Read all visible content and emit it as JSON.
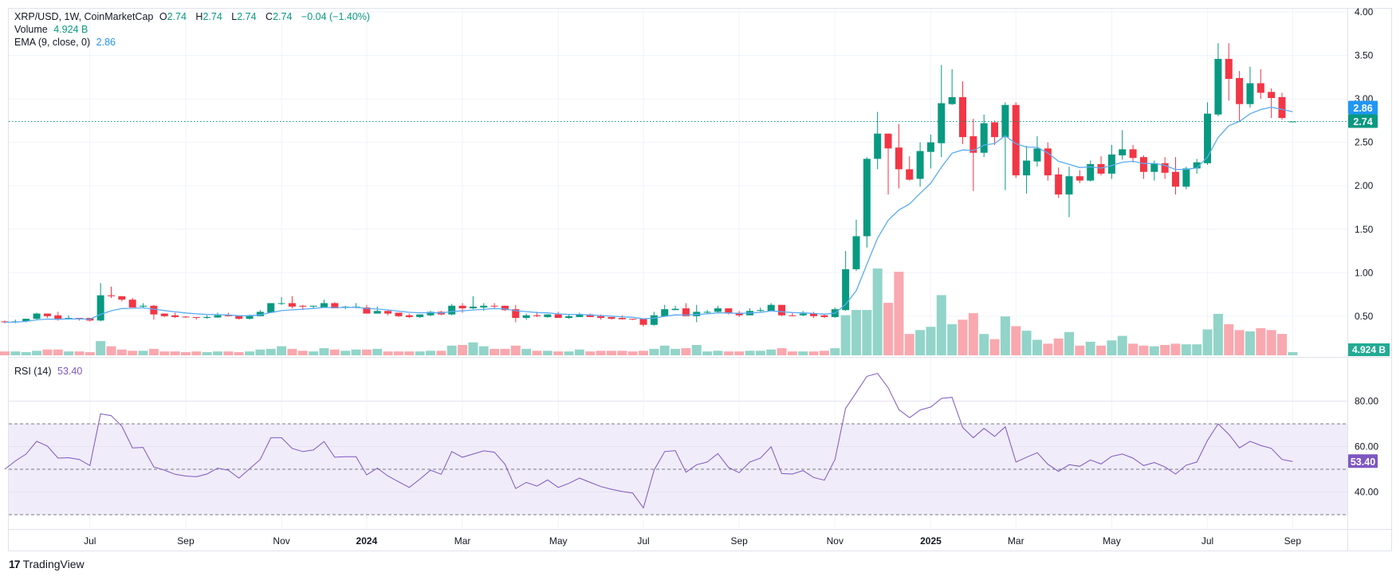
{
  "header": {
    "symbol": "XRP/USD, 1W, CoinMarketCap",
    "o_label": "O",
    "o": "2.74",
    "h_label": "H",
    "h": "2.74",
    "l_label": "L",
    "l": "2.74",
    "c_label": "C",
    "c": "2.74",
    "change": "−0.04 (−1.40%)",
    "volume_label": "Volume",
    "volume_value": "4.924 B",
    "ema_label": "EMA (9, close, 0)",
    "ema_value": "2.86",
    "rsi_label": "RSI (14)",
    "rsi_value": "53.40"
  },
  "badges": {
    "ema": "2.86",
    "last_price": "2.74",
    "volume": "4.924 B",
    "rsi": "53.40"
  },
  "brand": "TradingView",
  "colors": {
    "up": "#089981",
    "down": "#f23645",
    "vol_up": "#92d4c9",
    "vol_down": "#f9a8af",
    "ema": "#2196f3",
    "rsi": "#7e57c2",
    "rsi_band": "#f0ecf9",
    "volume_badge": "#22ab94"
  },
  "chart_data": [
    {
      "type": "candlestick",
      "interval": "1W",
      "price_axis": {
        "ticks": [
          "0.50",
          "1.00",
          "1.50",
          "2.00",
          "2.50",
          "3.00",
          "3.50",
          "4.00"
        ],
        "ylim": [
          0,
          4
        ]
      },
      "time_axis": [
        {
          "label": "Jul",
          "date": "2023-07-03"
        },
        {
          "label": "Sep",
          "date": "2023-09-04"
        },
        {
          "label": "Nov",
          "date": "2023-11-06"
        },
        {
          "label": "2024",
          "date": "2024-01-01"
        },
        {
          "label": "Mar",
          "date": "2024-03-04"
        },
        {
          "label": "May",
          "date": "2024-05-06"
        },
        {
          "label": "Jul",
          "date": "2024-07-01"
        },
        {
          "label": "Sep",
          "date": "2024-09-02"
        },
        {
          "label": "Nov",
          "date": "2024-11-04"
        },
        {
          "label": "2025",
          "date": "2025-01-06"
        },
        {
          "label": "Mar",
          "date": "2025-03-03"
        },
        {
          "label": "May",
          "date": "2025-05-05"
        },
        {
          "label": "Jul",
          "date": "2025-07-07"
        },
        {
          "label": "Sep",
          "date": "2025-09-01"
        }
      ],
      "columns": [
        "week",
        "open",
        "high",
        "low",
        "close",
        "volume_B"
      ],
      "candles": [
        [
          "2023-05-08",
          0.44,
          0.45,
          0.42,
          0.43,
          6
        ],
        [
          "2023-05-15",
          0.43,
          0.46,
          0.42,
          0.44,
          6
        ],
        [
          "2023-05-22",
          0.44,
          0.47,
          0.43,
          0.47,
          5
        ],
        [
          "2023-05-29",
          0.47,
          0.54,
          0.46,
          0.53,
          7
        ],
        [
          "2023-06-05",
          0.53,
          0.53,
          0.48,
          0.5,
          9
        ],
        [
          "2023-06-12",
          0.51,
          0.55,
          0.45,
          0.46,
          9
        ],
        [
          "2023-06-19",
          0.47,
          0.51,
          0.46,
          0.48,
          6
        ],
        [
          "2023-06-26",
          0.48,
          0.48,
          0.45,
          0.475,
          6
        ],
        [
          "2023-07-03",
          0.48,
          0.48,
          0.44,
          0.45,
          5
        ],
        [
          "2023-07-10",
          0.45,
          0.88,
          0.44,
          0.74,
          22
        ],
        [
          "2023-07-17",
          0.74,
          0.84,
          0.71,
          0.73,
          14
        ],
        [
          "2023-07-24",
          0.73,
          0.73,
          0.67,
          0.69,
          9
        ],
        [
          "2023-07-31",
          0.69,
          0.71,
          0.6,
          0.6,
          7
        ],
        [
          "2023-08-07",
          0.61,
          0.65,
          0.59,
          0.62,
          7
        ],
        [
          "2023-08-14",
          0.62,
          0.63,
          0.46,
          0.52,
          10
        ],
        [
          "2023-08-21",
          0.53,
          0.53,
          0.49,
          0.5,
          6
        ],
        [
          "2023-08-28",
          0.51,
          0.54,
          0.48,
          0.49,
          6
        ],
        [
          "2023-09-04",
          0.495,
          0.5,
          0.48,
          0.487,
          5
        ],
        [
          "2023-09-11",
          0.49,
          0.49,
          0.46,
          0.485,
          6
        ],
        [
          "2023-09-18",
          0.48,
          0.51,
          0.47,
          0.49,
          5
        ],
        [
          "2023-09-25",
          0.485,
          0.54,
          0.48,
          0.51,
          6
        ],
        [
          "2023-10-02",
          0.51,
          0.54,
          0.5,
          0.5,
          6
        ],
        [
          "2023-10-09",
          0.51,
          0.51,
          0.46,
          0.47,
          5
        ],
        [
          "2023-10-16",
          0.47,
          0.52,
          0.46,
          0.51,
          6
        ],
        [
          "2023-10-23",
          0.5,
          0.57,
          0.5,
          0.55,
          9
        ],
        [
          "2023-10-30",
          0.54,
          0.65,
          0.54,
          0.65,
          10
        ],
        [
          "2023-11-06",
          0.645,
          0.72,
          0.63,
          0.65,
          14
        ],
        [
          "2023-11-13",
          0.65,
          0.73,
          0.59,
          0.61,
          10
        ],
        [
          "2023-11-20",
          0.62,
          0.63,
          0.57,
          0.61,
          7
        ],
        [
          "2023-11-27",
          0.61,
          0.62,
          0.59,
          0.62,
          6
        ],
        [
          "2023-12-04",
          0.6,
          0.69,
          0.6,
          0.65,
          11
        ],
        [
          "2023-12-11",
          0.65,
          0.66,
          0.59,
          0.59,
          9
        ],
        [
          "2023-12-18",
          0.6,
          0.62,
          0.58,
          0.61,
          7
        ],
        [
          "2023-12-25",
          0.6,
          0.65,
          0.59,
          0.61,
          9
        ],
        [
          "2024-01-01",
          0.6,
          0.63,
          0.53,
          0.53,
          9
        ],
        [
          "2024-01-08",
          0.53,
          0.61,
          0.53,
          0.56,
          10
        ],
        [
          "2024-01-15",
          0.56,
          0.57,
          0.51,
          0.53,
          6
        ],
        [
          "2024-01-22",
          0.54,
          0.54,
          0.49,
          0.5,
          6
        ],
        [
          "2024-01-29",
          0.51,
          0.53,
          0.48,
          0.49,
          6
        ],
        [
          "2024-02-05",
          0.49,
          0.52,
          0.48,
          0.52,
          6
        ],
        [
          "2024-02-12",
          0.51,
          0.56,
          0.5,
          0.55,
          7
        ],
        [
          "2024-02-19",
          0.55,
          0.56,
          0.51,
          0.52,
          7
        ],
        [
          "2024-02-26",
          0.52,
          0.64,
          0.51,
          0.62,
          15
        ],
        [
          "2024-03-04",
          0.62,
          0.65,
          0.54,
          0.59,
          16
        ],
        [
          "2024-03-11",
          0.59,
          0.73,
          0.58,
          0.61,
          20
        ],
        [
          "2024-03-18",
          0.6,
          0.65,
          0.56,
          0.62,
          14
        ],
        [
          "2024-03-25",
          0.62,
          0.65,
          0.59,
          0.615,
          10
        ],
        [
          "2024-04-01",
          0.62,
          0.62,
          0.56,
          0.57,
          10
        ],
        [
          "2024-04-08",
          0.58,
          0.63,
          0.43,
          0.48,
          15
        ],
        [
          "2024-04-15",
          0.48,
          0.53,
          0.46,
          0.51,
          10
        ],
        [
          "2024-04-22",
          0.51,
          0.55,
          0.49,
          0.5,
          7
        ],
        [
          "2024-04-29",
          0.49,
          0.52,
          0.48,
          0.52,
          7
        ],
        [
          "2024-05-06",
          0.52,
          0.55,
          0.48,
          0.48,
          6
        ],
        [
          "2024-05-13",
          0.48,
          0.52,
          0.47,
          0.5,
          6
        ],
        [
          "2024-05-20",
          0.49,
          0.54,
          0.49,
          0.52,
          9
        ],
        [
          "2024-05-27",
          0.52,
          0.53,
          0.49,
          0.49,
          6
        ],
        [
          "2024-06-03",
          0.5,
          0.52,
          0.46,
          0.48,
          7
        ],
        [
          "2024-06-10",
          0.49,
          0.49,
          0.46,
          0.47,
          7
        ],
        [
          "2024-06-17",
          0.48,
          0.51,
          0.46,
          0.465,
          7
        ],
        [
          "2024-06-24",
          0.47,
          0.47,
          0.455,
          0.462,
          6
        ],
        [
          "2024-07-01",
          0.47,
          0.47,
          0.38,
          0.4,
          7
        ],
        [
          "2024-07-08",
          0.4,
          0.55,
          0.39,
          0.51,
          10
        ],
        [
          "2024-07-15",
          0.5,
          0.63,
          0.5,
          0.58,
          15
        ],
        [
          "2024-07-22",
          0.57,
          0.62,
          0.57,
          0.585,
          10
        ],
        [
          "2024-07-29",
          0.59,
          0.65,
          0.5,
          0.5,
          11
        ],
        [
          "2024-08-05",
          0.5,
          0.63,
          0.43,
          0.55,
          16
        ],
        [
          "2024-08-12",
          0.54,
          0.57,
          0.53,
          0.55,
          6
        ],
        [
          "2024-08-19",
          0.55,
          0.62,
          0.54,
          0.59,
          7
        ],
        [
          "2024-08-26",
          0.59,
          0.59,
          0.52,
          0.53,
          6
        ],
        [
          "2024-09-02",
          0.54,
          0.56,
          0.49,
          0.51,
          6
        ],
        [
          "2024-09-09",
          0.51,
          0.59,
          0.51,
          0.56,
          7
        ],
        [
          "2024-09-16",
          0.56,
          0.6,
          0.55,
          0.57,
          7
        ],
        [
          "2024-09-23",
          0.56,
          0.65,
          0.56,
          0.63,
          9
        ],
        [
          "2024-09-30",
          0.63,
          0.63,
          0.5,
          0.51,
          11
        ],
        [
          "2024-10-07",
          0.51,
          0.54,
          0.5,
          0.505,
          6
        ],
        [
          "2024-10-14",
          0.51,
          0.56,
          0.5,
          0.53,
          6
        ],
        [
          "2024-10-21",
          0.53,
          0.55,
          0.48,
          0.5,
          6
        ],
        [
          "2024-10-28",
          0.51,
          0.52,
          0.48,
          0.49,
          7
        ],
        [
          "2024-11-04",
          0.49,
          0.6,
          0.48,
          0.58,
          11
        ],
        [
          "2024-11-11",
          0.57,
          1.25,
          0.56,
          1.04,
          62
        ],
        [
          "2024-11-18",
          1.04,
          1.61,
          1.02,
          1.42,
          70
        ],
        [
          "2024-11-25",
          1.42,
          2.33,
          1.29,
          2.31,
          70
        ],
        [
          "2024-12-02",
          2.31,
          2.85,
          2.19,
          2.6,
          134
        ],
        [
          "2024-12-09",
          2.6,
          2.6,
          1.9,
          2.43,
          81
        ],
        [
          "2024-12-16",
          2.44,
          2.71,
          1.97,
          2.19,
          129
        ],
        [
          "2024-12-23",
          2.19,
          2.34,
          2.06,
          2.07,
          33
        ],
        [
          "2024-12-30",
          2.08,
          2.5,
          1.99,
          2.4,
          39
        ],
        [
          "2025-01-06",
          2.39,
          2.59,
          2.2,
          2.5,
          44
        ],
        [
          "2025-01-13",
          2.49,
          3.39,
          2.33,
          2.95,
          93
        ],
        [
          "2025-01-20",
          2.94,
          3.34,
          2.93,
          3.02,
          48
        ],
        [
          "2025-01-27",
          3.02,
          3.2,
          2.48,
          2.56,
          55
        ],
        [
          "2025-02-03",
          2.57,
          2.77,
          1.94,
          2.38,
          65
        ],
        [
          "2025-02-10",
          2.38,
          2.82,
          2.33,
          2.72,
          33
        ],
        [
          "2025-02-17",
          2.73,
          2.75,
          2.47,
          2.56,
          25
        ],
        [
          "2025-02-24",
          2.56,
          2.96,
          1.95,
          2.93,
          60
        ],
        [
          "2025-03-03",
          2.93,
          2.96,
          2.09,
          2.12,
          45
        ],
        [
          "2025-03-10",
          2.12,
          2.46,
          1.91,
          2.29,
          38
        ],
        [
          "2025-03-17",
          2.28,
          2.57,
          2.22,
          2.43,
          24
        ],
        [
          "2025-03-24",
          2.43,
          2.5,
          2.06,
          2.12,
          18
        ],
        [
          "2025-03-31",
          2.13,
          2.21,
          1.86,
          1.9,
          26
        ],
        [
          "2025-04-07",
          1.9,
          2.22,
          1.64,
          2.11,
          36
        ],
        [
          "2025-04-14",
          2.11,
          2.18,
          2.03,
          2.06,
          15
        ],
        [
          "2025-04-21",
          2.06,
          2.29,
          2.05,
          2.25,
          21
        ],
        [
          "2025-04-28",
          2.25,
          2.34,
          2.12,
          2.14,
          15
        ],
        [
          "2025-05-05",
          2.14,
          2.47,
          2.08,
          2.36,
          23
        ],
        [
          "2025-05-12",
          2.35,
          2.64,
          2.3,
          2.42,
          30
        ],
        [
          "2025-05-19",
          2.42,
          2.47,
          2.27,
          2.32,
          18
        ],
        [
          "2025-05-26",
          2.33,
          2.35,
          2.08,
          2.16,
          15
        ],
        [
          "2025-06-02",
          2.16,
          2.29,
          2.06,
          2.26,
          14
        ],
        [
          "2025-06-09",
          2.26,
          2.33,
          2.08,
          2.15,
          16
        ],
        [
          "2025-06-16",
          2.16,
          2.33,
          1.9,
          1.99,
          18
        ],
        [
          "2025-06-23",
          1.99,
          2.22,
          1.96,
          2.2,
          17
        ],
        [
          "2025-06-30",
          2.2,
          2.31,
          2.14,
          2.27,
          17
        ],
        [
          "2025-07-07",
          2.26,
          2.96,
          2.24,
          2.83,
          40
        ],
        [
          "2025-07-14",
          2.82,
          3.64,
          2.8,
          3.46,
          64
        ],
        [
          "2025-07-21",
          3.46,
          3.64,
          2.98,
          3.23,
          48
        ],
        [
          "2025-07-28",
          3.24,
          3.32,
          2.74,
          2.94,
          39
        ],
        [
          "2025-08-04",
          2.94,
          3.37,
          2.9,
          3.18,
          37
        ],
        [
          "2025-08-11",
          3.18,
          3.34,
          3.0,
          3.07,
          42
        ],
        [
          "2025-08-18",
          3.08,
          3.12,
          2.78,
          3.01,
          39
        ],
        [
          "2025-08-25",
          3.02,
          3.07,
          2.76,
          2.78,
          33
        ],
        [
          "2025-09-01",
          2.74,
          2.74,
          2.74,
          2.74,
          4.924
        ]
      ],
      "ema_period": 9,
      "last_price": 2.74
    },
    {
      "type": "line",
      "name": "RSI (14)",
      "y_ticks": [
        "40.00",
        "60.00",
        "80.00"
      ],
      "bands": {
        "upper": 70,
        "middle": 50,
        "lower": 30
      },
      "ylim": [
        20,
        100
      ],
      "values": [
        50,
        53.7,
        56.7,
        62.3,
        60.2,
        54.9,
        55.1,
        54.3,
        51.6,
        74.4,
        73.6,
        69,
        59.4,
        59.6,
        51,
        49.6,
        47.8,
        47,
        46.7,
        47.9,
        50.5,
        49.6,
        46.1,
        50.2,
        54.3,
        63.9,
        63.9,
        59.2,
        57.8,
        58.5,
        62.2,
        55.3,
        55.5,
        55.5,
        47.5,
        50.5,
        47,
        44.5,
        42,
        45.6,
        49.6,
        47.8,
        57.8,
        55.3,
        56.7,
        58.1,
        57.5,
        52.2,
        41.5,
        44.2,
        42.6,
        45.3,
        42,
        43.8,
        46.1,
        44.2,
        42.4,
        41.2,
        40.2,
        39.5,
        33,
        49.6,
        57.8,
        58.2,
        48.7,
        52,
        53.2,
        56.9,
        50.8,
        48.5,
        53.2,
        54.9,
        59.9,
        48.1,
        47.9,
        49.4,
        46.4,
        45.2,
        54.3,
        76.8,
        83.8,
        90.9,
        92.2,
        85.9,
        76.3,
        72.7,
        76.1,
        77.4,
        81.2,
        81.7,
        68.4,
        63.9,
        68,
        64.5,
        68.7,
        53.2,
        55.3,
        57.3,
        52.2,
        49.1,
        52,
        51.3,
        54.1,
        52.3,
        55.7,
        56.7,
        54.9,
        51.6,
        53,
        51,
        47.9,
        51.8,
        53.2,
        62.7,
        70,
        65.4,
        59.4,
        62.3,
        60.5,
        59.2,
        54.3,
        53.4
      ]
    }
  ]
}
